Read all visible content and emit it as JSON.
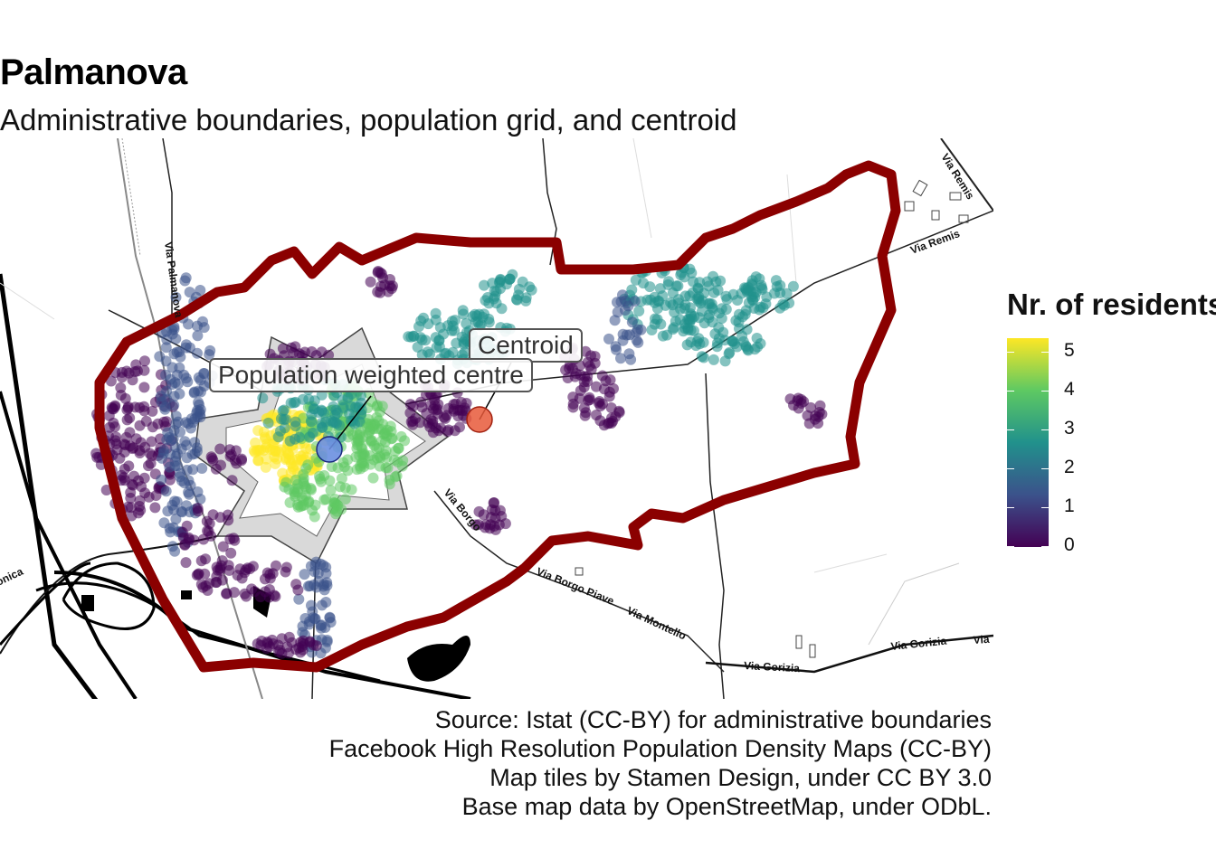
{
  "title": "Palmanova",
  "subtitle": "Administrative boundaries, population grid, and centroid",
  "legend": {
    "title": "Nr. of residents",
    "ticks": [
      "5",
      "4",
      "3",
      "2",
      "1",
      "0"
    ],
    "scale": "viridis",
    "colors": [
      "#440154",
      "#3b528b",
      "#21918c",
      "#5ec962",
      "#fde725"
    ]
  },
  "labels": {
    "centroid": "Centroid",
    "weighted_centre": "Population weighted centre"
  },
  "markers": {
    "centroid_color": "#e8593a",
    "weighted_centre_color": "#6a8fe0"
  },
  "boundary_color": "#8b0000",
  "streets": {
    "via_palmanova": "Via Palmanova",
    "via_remis_1": "Via Remis",
    "via_remis_2": "Via Remis",
    "via_borgo_1": "Via Borgo",
    "via_borgo_piave": "Via Borgo Piave",
    "via_montello": "Via Montello",
    "via_gorizia_1": "Via Gorizia",
    "via_gorizia_2": "Via Gorizia",
    "via_gorizia_3": "Via",
    "onica": "onica"
  },
  "caption": [
    "Source: Istat (CC-BY) for administrative boundaries",
    "Facebook High Resolution Population Density Maps (CC-BY)",
    "Map tiles by Stamen Design, under CC BY 3.0",
    "Base map data by OpenStreetMap, under ODbL."
  ]
}
